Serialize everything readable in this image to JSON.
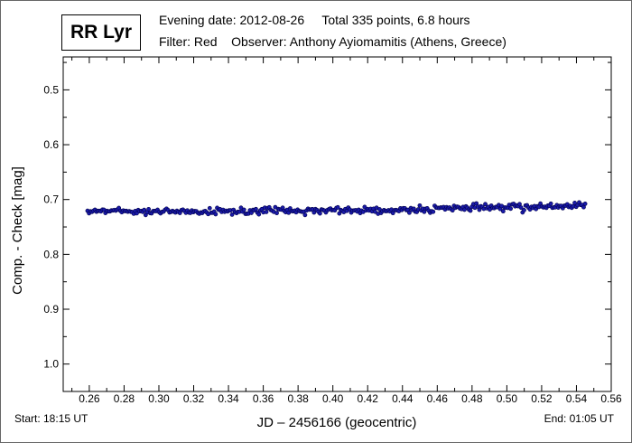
{
  "header": {
    "star_name": "RR Lyr",
    "evening_date": "Evening date: 2012-08-26",
    "total": "Total 335 points, 6.8 hours",
    "filter": "Filter: Red",
    "observer": "Observer: Anthony Ayiomamitis (Athens, Greece)"
  },
  "footer": {
    "start": "Start: 18:15 UT",
    "end": "End: 01:05 UT"
  },
  "chart_data": {
    "type": "scatter",
    "xlabel": "JD – 2456166  (geocentric)",
    "ylabel": "Comp. - Check [mag]",
    "xlim": [
      0.245,
      0.56
    ],
    "ylim": [
      0.44,
      1.05
    ],
    "y_inverted": true,
    "x_ticks": [
      "0.26",
      "0.28",
      "0.30",
      "0.32",
      "0.34",
      "0.36",
      "0.38",
      "0.40",
      "0.42",
      "0.44",
      "0.46",
      "0.48",
      "0.50",
      "0.52",
      "0.54",
      "0.56"
    ],
    "y_ticks": [
      "0.5",
      "0.6",
      "0.7",
      "0.8",
      "0.9",
      "1.0"
    ],
    "grid": false,
    "marker_color": "#1a1aa8",
    "marker_edge": "#00004a",
    "n_points": 335,
    "x_start": 0.259,
    "x_end": 0.545,
    "trend": [
      {
        "x": 0.259,
        "y": 0.72
      },
      {
        "x": 0.3,
        "y": 0.722
      },
      {
        "x": 0.35,
        "y": 0.721
      },
      {
        "x": 0.4,
        "y": 0.72
      },
      {
        "x": 0.45,
        "y": 0.718
      },
      {
        "x": 0.5,
        "y": 0.714
      },
      {
        "x": 0.545,
        "y": 0.711
      }
    ],
    "scatter": 0.004
  }
}
